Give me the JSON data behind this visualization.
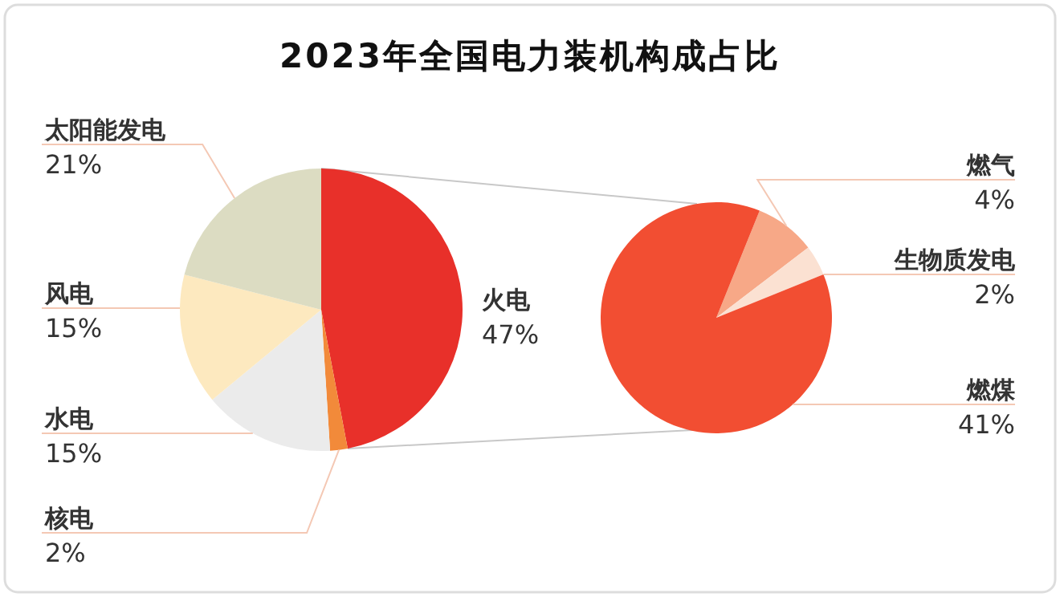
{
  "chart_data": [
    {
      "type": "pie",
      "title": "2023年全国电力装机构成占比",
      "categories": [
        "火电",
        "核电",
        "水电",
        "风电",
        "太阳能发电"
      ],
      "values": [
        47,
        2,
        15,
        15,
        21
      ],
      "value_labels": [
        "47%",
        "2%",
        "15%",
        "15%",
        "21%"
      ],
      "colors": [
        "#e8302a",
        "#f28a3a",
        "#ebebeb",
        "#fde9bf",
        "#dcdcc2"
      ]
    },
    {
      "type": "pie",
      "categories": [
        "燃气",
        "生物质发电",
        "燃煤"
      ],
      "values": [
        4,
        2,
        41
      ],
      "value_labels": [
        "4%",
        "2%",
        "41%"
      ],
      "colors": [
        "#f7a887",
        "#fbe1d2",
        "#f24e32"
      ]
    }
  ]
}
